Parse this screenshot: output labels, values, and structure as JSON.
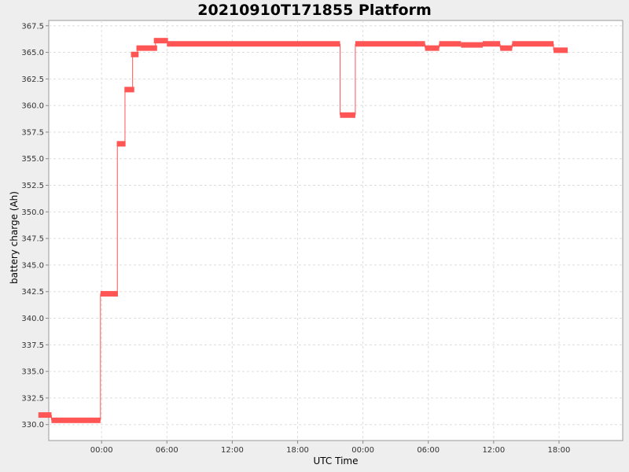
{
  "chart_data": {
    "type": "line",
    "title": "20210910T171855 Platform",
    "xlabel": "UTC Time",
    "ylabel": "battery charge (Ah)",
    "ylim": [
      328.5,
      368.0
    ],
    "xlim": [
      -4.85,
      47.85
    ],
    "x_tick_values": [
      -6,
      0,
      6,
      12,
      18,
      24,
      30,
      36,
      42
    ],
    "x_tick_labels": [
      "18:00",
      "00:00",
      "06:00",
      "12:00",
      "18:00",
      "00:00",
      "06:00",
      "12:00",
      "18:00"
    ],
    "y_ticks": [
      "330.0",
      "332.5",
      "335.0",
      "337.5",
      "340.0",
      "342.5",
      "345.0",
      "347.5",
      "350.0",
      "352.5",
      "355.0",
      "357.5",
      "360.0",
      "362.5",
      "365.0",
      "367.5"
    ],
    "grid": true,
    "series": [
      {
        "color": "#ff5555",
        "segments": [
          {
            "x0": -5.8,
            "x1": -4.6,
            "y": 330.9
          },
          {
            "x0": -4.6,
            "x1": -0.1,
            "y": 330.4
          },
          {
            "x0": -0.1,
            "x1": 1.5,
            "y": 342.3
          },
          {
            "x0": 1.4,
            "x1": 2.2,
            "y": 356.4
          },
          {
            "x0": 2.1,
            "x1": 3.0,
            "y": 361.5
          },
          {
            "x0": 2.7,
            "x1": 3.4,
            "y": 364.8
          },
          {
            "x0": 3.2,
            "x1": 5.1,
            "y": 365.4
          },
          {
            "x0": 4.8,
            "x1": 6.1,
            "y": 366.1
          },
          {
            "x0": 6.0,
            "x1": 21.9,
            "y": 365.8
          },
          {
            "x0": 21.9,
            "x1": 23.3,
            "y": 359.1
          },
          {
            "x0": 23.3,
            "x1": 29.7,
            "y": 365.8
          },
          {
            "x0": 29.7,
            "x1": 31.0,
            "y": 365.4
          },
          {
            "x0": 31.0,
            "x1": 33.0,
            "y": 365.8
          },
          {
            "x0": 33.0,
            "x1": 35.0,
            "y": 365.7
          },
          {
            "x0": 35.0,
            "x1": 36.6,
            "y": 365.8
          },
          {
            "x0": 36.6,
            "x1": 37.7,
            "y": 365.4
          },
          {
            "x0": 37.7,
            "x1": 41.5,
            "y": 365.8
          },
          {
            "x0": 41.5,
            "x1": 42.8,
            "y": 365.2
          }
        ]
      }
    ]
  }
}
